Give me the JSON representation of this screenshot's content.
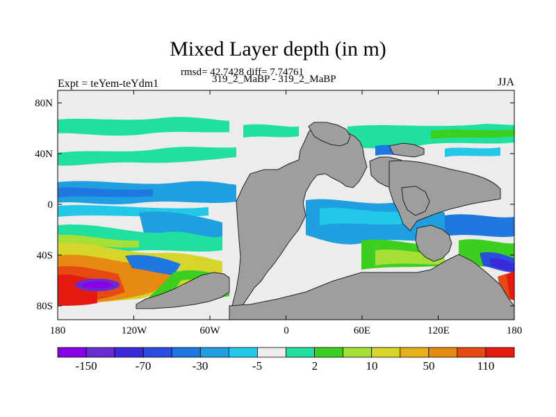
{
  "title": "Mixed Layer depth (in m)",
  "subtitle_stats": "rmsd= 42.7428 diff= 7.74761",
  "subtitle_runs": "319_2_MaBP - 319_2_MaBP",
  "left_string": "Expt = teYem-teYdm1",
  "right_string": "JJA",
  "axes": {
    "x_ticks": [
      "180",
      "120W",
      "60W",
      "0",
      "60E",
      "120E",
      "180"
    ],
    "y_ticks": [
      "80N",
      "40N",
      "0",
      "40S",
      "80S"
    ]
  },
  "colorbar": {
    "colors": [
      "#8a00e6",
      "#6a2ad2",
      "#3a2ad8",
      "#2a4fe0",
      "#1e78e0",
      "#1f9fe0",
      "#22c8e8",
      "#ececec",
      "#20e0a0",
      "#3ccf20",
      "#a6e036",
      "#d6d62a",
      "#e6b018",
      "#e68a12",
      "#e64a12",
      "#e61a10"
    ],
    "labels": [
      "-150",
      "-70",
      "-30",
      "-5",
      "2",
      "10",
      "50",
      "110"
    ]
  },
  "colors": {
    "land": "#9e9e9e",
    "no_change": "#ececec"
  }
}
